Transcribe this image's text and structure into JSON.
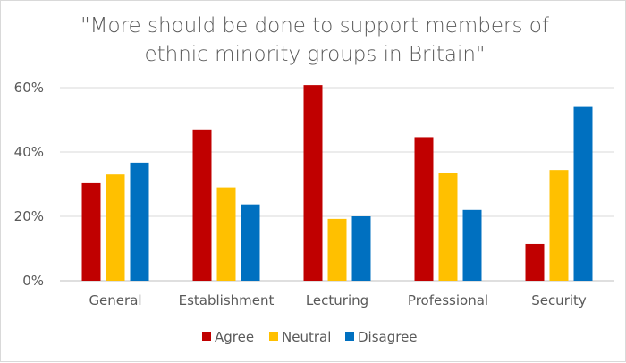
{
  "chart_data": {
    "type": "bar",
    "title_lines": [
      "\"More should be done to support members of",
      "ethnic minority groups in Britain\""
    ],
    "categories": [
      "General",
      "Establishment",
      "Lecturing",
      "Professional",
      "Security"
    ],
    "series": [
      {
        "name": "Agree",
        "color": "#c00000",
        "values": [
          30.3,
          47,
          60.8,
          44.6,
          11.4
        ]
      },
      {
        "name": "Neutral",
        "color": "#ffc000",
        "values": [
          33,
          29,
          19.2,
          33.4,
          34.4
        ]
      },
      {
        "name": "Disagree",
        "color": "#0070c0",
        "values": [
          36.7,
          23.7,
          20,
          22,
          54
        ]
      }
    ],
    "ylim": [
      0,
      60
    ],
    "yticks": [
      0,
      20,
      40,
      60
    ],
    "ytick_labels": [
      "0%",
      "20%",
      "40%",
      "60%"
    ],
    "grid": true,
    "legend_position": "bottom"
  }
}
